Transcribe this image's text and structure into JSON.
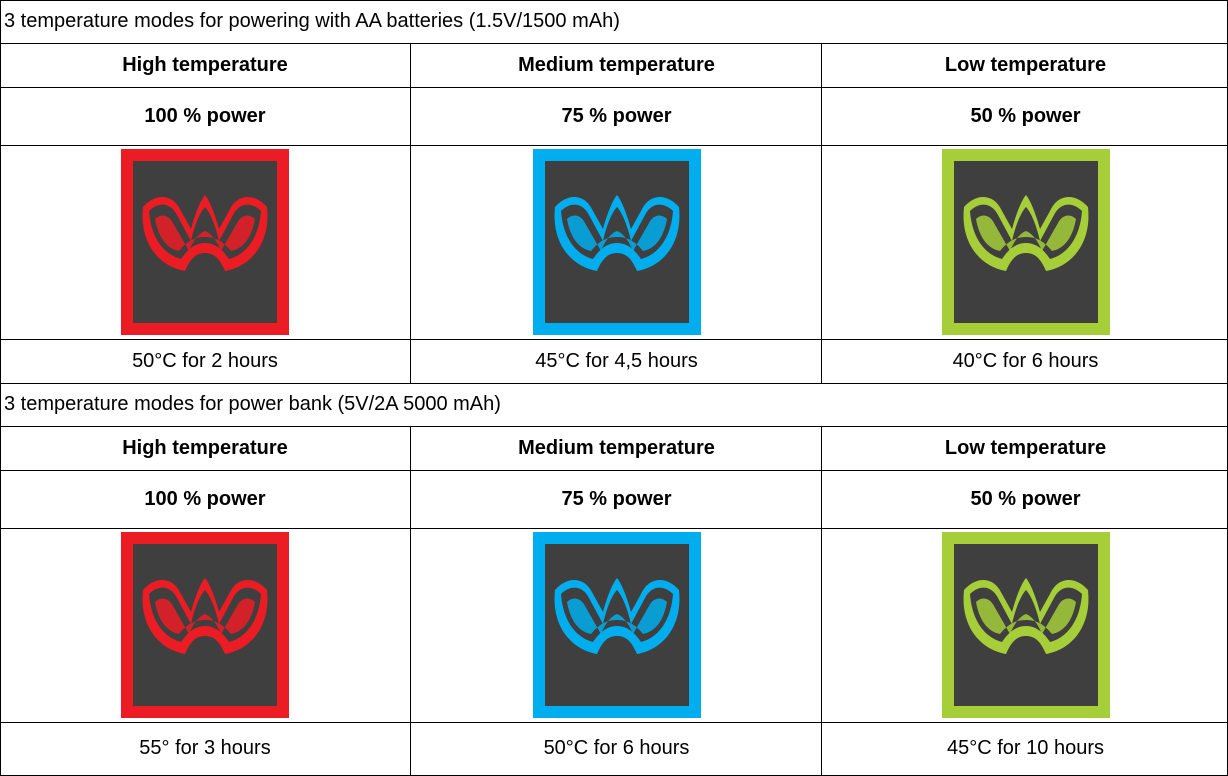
{
  "sections": [
    {
      "title": "3 temperature modes for powering with AA batteries (1.5V/1500 mAh)",
      "modes": [
        {
          "name": "High temperature",
          "power": "100 % power",
          "description": "50°C for 2 hours",
          "color": "#ec1c24"
        },
        {
          "name": "Medium temperature",
          "power": "75 % power",
          "description": "45°C for 4,5 hours",
          "color": "#00aeef"
        },
        {
          "name": "Low temperature",
          "power": "50 % power",
          "description": "40°C for 6 hours",
          "color": "#a6ce39"
        }
      ]
    },
    {
      "title": "3 temperature modes for power bank (5V/2A 5000 mAh)",
      "modes": [
        {
          "name": "High temperature",
          "power": "100 % power",
          "description": "55° for 3 hours",
          "color": "#ec1c24"
        },
        {
          "name": "Medium temperature",
          "power": "75 % power",
          "description": "50°C for 6 hours",
          "color": "#00aeef"
        },
        {
          "name": "Low temperature",
          "power": "50 % power",
          "description": "45°C for 10 hours",
          "color": "#a6ce39"
        }
      ]
    }
  ],
  "icon": {
    "name": "heating-mode-logo-icon",
    "background": "#3f3f3f"
  }
}
